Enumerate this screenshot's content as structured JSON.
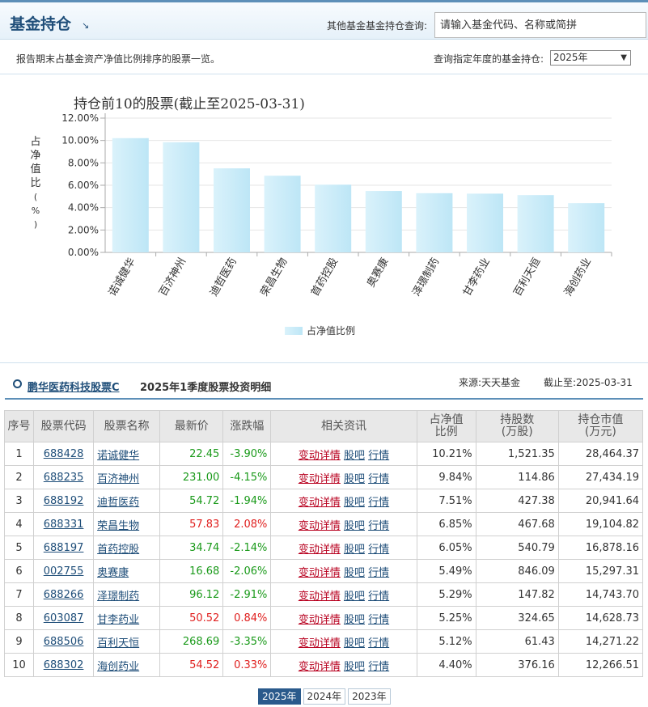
{
  "header": {
    "title": "基金持仓",
    "arrow": "↘",
    "search_label": "其他基金基金持仓查询:",
    "search_placeholder": "请输入基金代码、名称或简拼"
  },
  "subbar": {
    "description": "报告期末占基金资产净值比例排序的股票一览。",
    "year_label": "查询指定年度的基金持仓:",
    "year_selected": "2025年"
  },
  "chart_data": {
    "type": "bar",
    "title": "持仓前10的股票(截止至2025-03-31)",
    "ylabel": "占净值比(%)",
    "ylabel_chars": [
      "占",
      "净",
      "值",
      "比",
      "(",
      "%",
      ")"
    ],
    "categories": [
      "诺诚健华",
      "百济神州",
      "迪哲医药",
      "荣昌生物",
      "首药控股",
      "奥赛康",
      "泽璟制药",
      "甘李药业",
      "百利天恒",
      "海创药业"
    ],
    "series": [
      {
        "name": "占净值比例",
        "values": [
          10.21,
          9.84,
          7.51,
          6.85,
          6.05,
          5.49,
          5.29,
          5.25,
          5.12,
          4.4
        ]
      }
    ],
    "ylim": [
      0,
      12
    ],
    "yticks": [
      "0.00%",
      "2.00%",
      "4.00%",
      "6.00%",
      "8.00%",
      "10.00%",
      "12.00%"
    ],
    "grid": true,
    "legend_position": "bottom"
  },
  "detail": {
    "fund_name": "鹏华医药科技股票C",
    "subtitle": "2025年1季度股票投资明细",
    "source": "来源:天天基金",
    "date": "截止至:2025-03-31"
  },
  "table": {
    "headers": {
      "idx": "序号",
      "code": "股票代码",
      "name": "股票名称",
      "price": "最新价",
      "change": "涨跌幅",
      "news": "相关资讯",
      "pct_line1": "占净值",
      "pct_line2": "比例",
      "shares_line1": "持股数",
      "shares_line2": "(万股)",
      "value_line1": "持仓市值",
      "value_line2": "(万元)"
    },
    "link_labels": {
      "detail": "变动详情",
      "forum": "股吧",
      "quote": "行情"
    },
    "rows": [
      {
        "idx": "1",
        "code": "688428",
        "name": "诺诚健华",
        "price": "22.45",
        "change": "-3.90%",
        "dir": "down",
        "pct": "10.21%",
        "shares": "1,521.35",
        "value": "28,464.37"
      },
      {
        "idx": "2",
        "code": "688235",
        "name": "百济神州",
        "price": "231.00",
        "change": "-4.15%",
        "dir": "down",
        "pct": "9.84%",
        "shares": "114.86",
        "value": "27,434.19"
      },
      {
        "idx": "3",
        "code": "688192",
        "name": "迪哲医药",
        "price": "54.72",
        "change": "-1.94%",
        "dir": "down",
        "pct": "7.51%",
        "shares": "427.38",
        "value": "20,941.64"
      },
      {
        "idx": "4",
        "code": "688331",
        "name": "荣昌生物",
        "price": "57.83",
        "change": "2.08%",
        "dir": "up",
        "pct": "6.85%",
        "shares": "467.68",
        "value": "19,104.82"
      },
      {
        "idx": "5",
        "code": "688197",
        "name": "首药控股",
        "price": "34.74",
        "change": "-2.14%",
        "dir": "down",
        "pct": "6.05%",
        "shares": "540.79",
        "value": "16,878.16"
      },
      {
        "idx": "6",
        "code": "002755",
        "name": "奥赛康",
        "price": "16.68",
        "change": "-2.06%",
        "dir": "down",
        "pct": "5.49%",
        "shares": "846.09",
        "value": "15,297.31"
      },
      {
        "idx": "7",
        "code": "688266",
        "name": "泽璟制药",
        "price": "96.12",
        "change": "-2.91%",
        "dir": "down",
        "pct": "5.29%",
        "shares": "147.82",
        "value": "14,743.70"
      },
      {
        "idx": "8",
        "code": "603087",
        "name": "甘李药业",
        "price": "50.52",
        "change": "0.84%",
        "dir": "up",
        "pct": "5.25%",
        "shares": "324.65",
        "value": "14,628.73"
      },
      {
        "idx": "9",
        "code": "688506",
        "name": "百利天恒",
        "price": "268.69",
        "change": "-3.35%",
        "dir": "down",
        "pct": "5.12%",
        "shares": "61.43",
        "value": "14,271.22"
      },
      {
        "idx": "10",
        "code": "688302",
        "name": "海创药业",
        "price": "54.52",
        "change": "0.33%",
        "dir": "up",
        "pct": "4.40%",
        "shares": "376.16",
        "value": "12,266.51"
      }
    ]
  },
  "pager": {
    "years": [
      {
        "label": "2025年",
        "active": true
      },
      {
        "label": "2024年",
        "active": false
      },
      {
        "label": "2023年",
        "active": false
      }
    ]
  },
  "colors": {
    "brand": "#1f4e79",
    "up": "#e0201f",
    "down": "#1a9a1a",
    "link_red": "#b8001f",
    "bar_light": "#daf2fb",
    "bar_dark": "#bde6f6"
  }
}
